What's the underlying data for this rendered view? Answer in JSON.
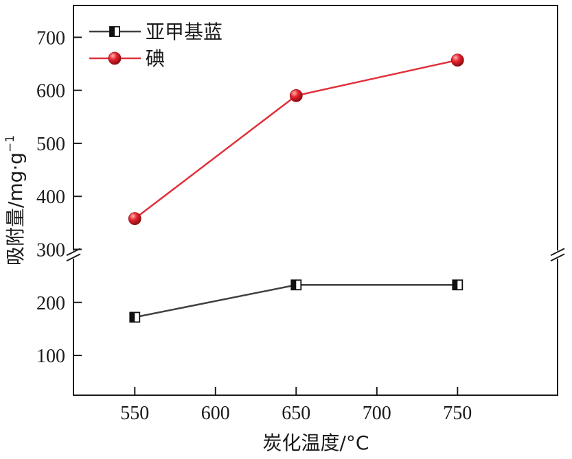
{
  "chart_data": {
    "type": "line",
    "xlabel": "炭化温度/°C",
    "ylabel": "吸附量/mg·g",
    "ylabel_sup": "−1",
    "x_ticks": [
      550,
      600,
      650,
      700,
      750
    ],
    "y_ticks": [
      100,
      200,
      300,
      400,
      500,
      600,
      700
    ],
    "xlim": [
      512,
      812
    ],
    "ylim": [
      25,
      760
    ],
    "axis_break_y": 290,
    "grid": false,
    "legend_position": "top-left",
    "series": [
      {
        "name": "亚甲基蓝",
        "marker": "half-filled-square",
        "color": "#404040",
        "x": [
          550,
          650,
          750
        ],
        "y": [
          172,
          233,
          233
        ]
      },
      {
        "name": "碘",
        "marker": "circle",
        "color": "#e0303a",
        "x": [
          550,
          650,
          750
        ],
        "y": [
          358,
          590,
          657
        ]
      }
    ]
  }
}
